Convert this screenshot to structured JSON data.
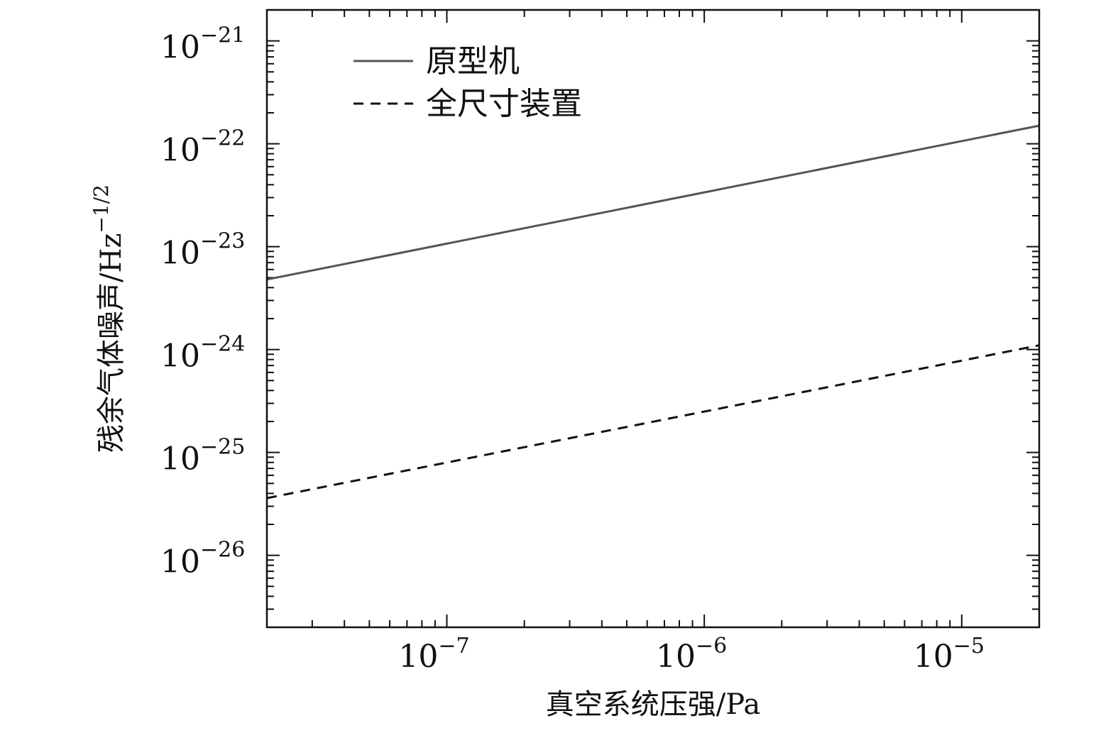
{
  "chart_data": {
    "type": "line",
    "xlabel": "真空系统压强/Pa",
    "ylabel": "残余气体噪声/Hz",
    "ylabel_exp": "−1/2",
    "x_scale": "log",
    "y_scale": "log",
    "xlim": [
      2e-08,
      2e-05
    ],
    "ylim": [
      2e-27,
      2e-21
    ],
    "grid": false,
    "legend_position": "top-left",
    "x_ticks": [
      {
        "value": 1e-07,
        "base": "10",
        "exp": "−7"
      },
      {
        "value": 1e-06,
        "base": "10",
        "exp": "−6"
      },
      {
        "value": 1e-05,
        "base": "10",
        "exp": "−5"
      }
    ],
    "y_ticks": [
      {
        "value": 1e-21,
        "base": "10",
        "exp": "−21"
      },
      {
        "value": 1e-22,
        "base": "10",
        "exp": "−22"
      },
      {
        "value": 1e-23,
        "base": "10",
        "exp": "−23"
      },
      {
        "value": 1e-24,
        "base": "10",
        "exp": "−24"
      },
      {
        "value": 1e-25,
        "base": "10",
        "exp": "−25"
      },
      {
        "value": 1e-26,
        "base": "10",
        "exp": "−26"
      }
    ],
    "series": [
      {
        "name": "原型机",
        "style": "solid",
        "color": "#555555",
        "x": [
          2e-08,
          2e-05
        ],
        "y": [
          4.8e-24,
          1.5e-22
        ]
      },
      {
        "name": "全尺寸装置",
        "style": "dashed",
        "color": "#111111",
        "x": [
          2e-08,
          2e-05
        ],
        "y": [
          3.6e-26,
          1.1e-24
        ]
      }
    ]
  }
}
